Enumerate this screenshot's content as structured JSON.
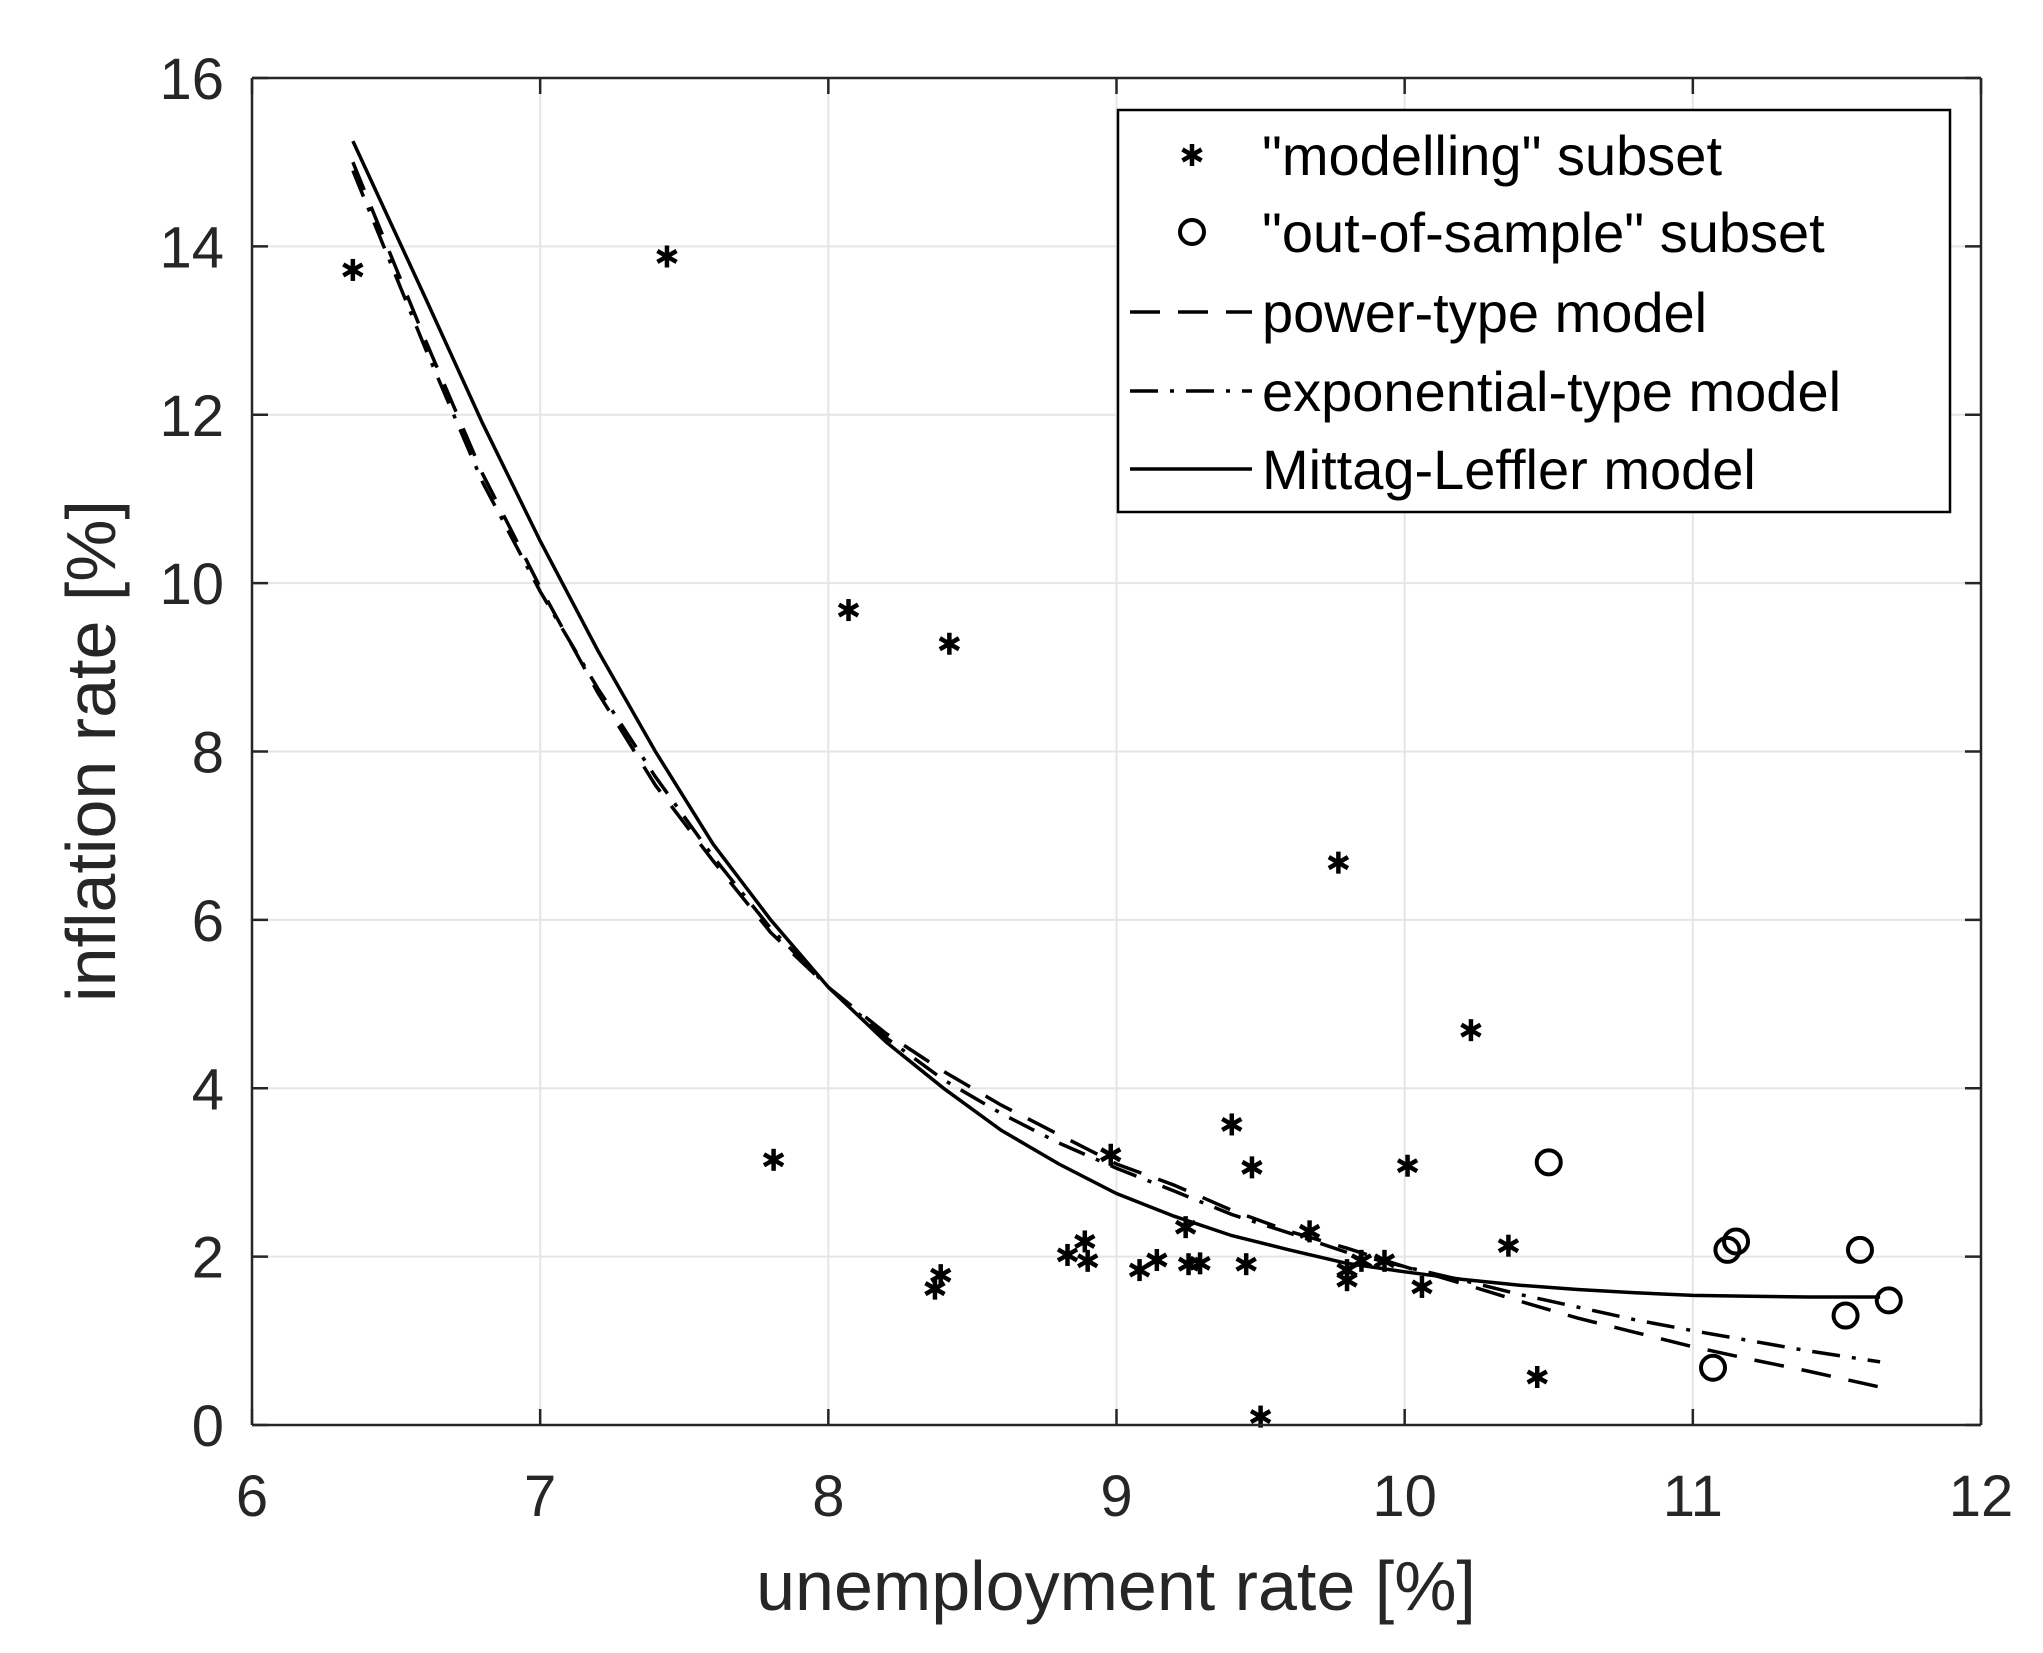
{
  "chart_data": {
    "type": "scatter",
    "title": "",
    "xlabel": "unemployment rate [%]",
    "ylabel": "inflation rate [%]",
    "xlim": [
      6,
      12
    ],
    "ylim": [
      0,
      16
    ],
    "xticks": [
      "6",
      "7",
      "8",
      "9",
      "10",
      "11",
      "12"
    ],
    "yticks": [
      "0",
      "2",
      "4",
      "6",
      "8",
      "10",
      "12",
      "14",
      "16"
    ],
    "grid": true,
    "legend_position": "top-right",
    "series": [
      {
        "name": "\"modelling\" subset",
        "kind": "scatter",
        "marker": "asterisk",
        "points": [
          [
            6.35,
            13.72
          ],
          [
            7.44,
            13.88
          ],
          [
            8.07,
            9.68
          ],
          [
            8.42,
            9.28
          ],
          [
            7.81,
            3.15
          ],
          [
            8.37,
            1.62
          ],
          [
            8.39,
            1.78
          ],
          [
            8.83,
            2.02
          ],
          [
            8.89,
            2.18
          ],
          [
            8.9,
            1.95
          ],
          [
            8.98,
            3.21
          ],
          [
            9.08,
            1.84
          ],
          [
            9.14,
            1.96
          ],
          [
            9.24,
            2.35
          ],
          [
            9.25,
            1.91
          ],
          [
            9.29,
            1.92
          ],
          [
            9.4,
            3.57
          ],
          [
            9.45,
            1.91
          ],
          [
            9.47,
            3.06
          ],
          [
            9.5,
            0.1
          ],
          [
            9.67,
            2.3
          ],
          [
            9.77,
            6.68
          ],
          [
            9.8,
            1.84
          ],
          [
            9.8,
            1.72
          ],
          [
            9.85,
            1.95
          ],
          [
            9.93,
            1.95
          ],
          [
            10.01,
            3.08
          ],
          [
            10.06,
            1.64
          ],
          [
            10.23,
            4.69
          ],
          [
            10.36,
            2.13
          ],
          [
            10.46,
            0.57
          ]
        ]
      },
      {
        "name": "\"out-of-sample\" subset",
        "kind": "scatter",
        "marker": "circle",
        "points": [
          [
            10.5,
            3.12
          ],
          [
            11.07,
            0.68
          ],
          [
            11.12,
            2.08
          ],
          [
            11.15,
            2.18
          ],
          [
            11.53,
            1.3
          ],
          [
            11.58,
            2.08
          ],
          [
            11.68,
            1.48
          ]
        ]
      },
      {
        "name": "power-type model",
        "kind": "line",
        "dash": "dashed",
        "x": [
          6.35,
          6.6,
          6.8,
          7.0,
          7.2,
          7.4,
          7.6,
          7.8,
          8.0,
          8.2,
          8.4,
          8.6,
          8.8,
          9.0,
          9.2,
          9.4,
          9.6,
          9.8,
          10.0,
          10.2,
          10.4,
          10.6,
          10.8,
          11.0,
          11.2,
          11.4,
          11.65
        ],
        "y": [
          15.0,
          12.9,
          11.3,
          9.95,
          8.7,
          7.6,
          6.7,
          5.85,
          5.2,
          4.65,
          4.2,
          3.8,
          3.45,
          3.1,
          2.85,
          2.55,
          2.3,
          2.1,
          1.88,
          1.68,
          1.47,
          1.27,
          1.1,
          0.93,
          0.78,
          0.64,
          0.45
        ]
      },
      {
        "name": "exponential-type model",
        "kind": "line",
        "dash": "dash-dot",
        "x": [
          6.35,
          6.6,
          6.8,
          7.0,
          7.2,
          7.4,
          7.6,
          7.8,
          8.0,
          8.2,
          8.4,
          8.6,
          8.8,
          9.0,
          9.2,
          9.4,
          9.6,
          9.8,
          10.0,
          10.2,
          10.4,
          10.6,
          10.8,
          11.0,
          11.2,
          11.4,
          11.65
        ],
        "y": [
          14.9,
          12.8,
          11.2,
          9.9,
          8.75,
          7.7,
          6.75,
          5.9,
          5.2,
          4.6,
          4.1,
          3.7,
          3.35,
          3.05,
          2.78,
          2.5,
          2.28,
          2.05,
          1.88,
          1.72,
          1.55,
          1.4,
          1.25,
          1.12,
          1.0,
          0.88,
          0.75
        ]
      },
      {
        "name": "Mittag-Leffler model",
        "kind": "line",
        "dash": "solid",
        "x": [
          6.35,
          6.6,
          6.8,
          7.0,
          7.2,
          7.4,
          7.6,
          7.8,
          8.0,
          8.2,
          8.4,
          8.6,
          8.8,
          9.0,
          9.2,
          9.4,
          9.6,
          9.8,
          10.0,
          10.2,
          10.4,
          10.6,
          10.8,
          11.0,
          11.2,
          11.4,
          11.65
        ],
        "y": [
          15.25,
          13.4,
          11.9,
          10.5,
          9.2,
          8.0,
          6.9,
          6.0,
          5.2,
          4.55,
          4.0,
          3.5,
          3.1,
          2.75,
          2.48,
          2.25,
          2.08,
          1.92,
          1.82,
          1.73,
          1.66,
          1.61,
          1.57,
          1.54,
          1.53,
          1.52,
          1.52
        ]
      }
    ]
  },
  "colors": {
    "background": "#ffffff",
    "grid": "#e5e5e5",
    "axis": "#262626",
    "series": "#000000"
  }
}
